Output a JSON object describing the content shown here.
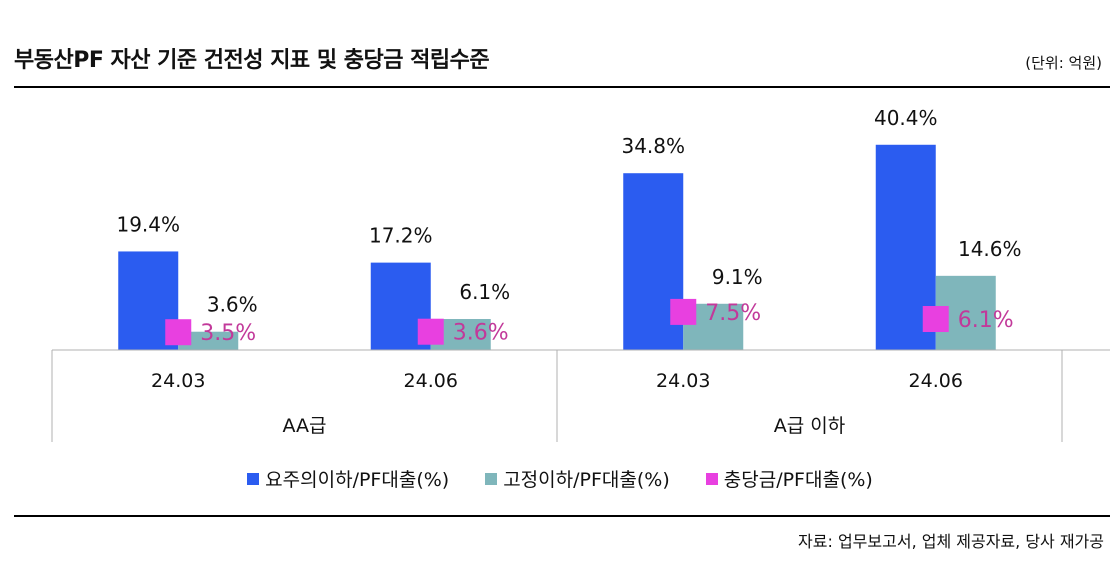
{
  "header": {
    "title": "부동산PF 자산 기준 건전성 지표 및 충당금 적립수준",
    "unit": "(단위: 억원)"
  },
  "footer": {
    "source": "자료: 업무보고서, 업체 제공자료, 당사 재가공"
  },
  "colors": {
    "series1": "#2b5cf0",
    "series2": "#7fb6bb",
    "series3": "#e840e0",
    "series3_label": "#c2399a"
  },
  "chart_data": {
    "type": "bar",
    "groups": [
      {
        "name": "AA급",
        "categories": [
          "24.03",
          "24.06"
        ]
      },
      {
        "name": "A급 이하",
        "categories": [
          "24.03",
          "24.06"
        ]
      }
    ],
    "categories": [
      "24.03",
      "24.06",
      "24.03",
      "24.06"
    ],
    "series": [
      {
        "name": "요주의이하/PF대출(%)",
        "type": "bar",
        "values": [
          19.4,
          17.2,
          34.8,
          40.4
        ],
        "labels": [
          "19.4%",
          "17.2%",
          "34.8%",
          "40.4%"
        ]
      },
      {
        "name": "고정이하/PF대출(%)",
        "type": "bar",
        "values": [
          3.6,
          6.1,
          9.1,
          14.6
        ],
        "labels": [
          "3.6%",
          "6.1%",
          "9.1%",
          "14.6%"
        ]
      },
      {
        "name": "충당금/PF대출(%)",
        "type": "marker",
        "values": [
          3.5,
          3.6,
          7.5,
          6.1
        ],
        "labels": [
          "3.5%",
          "3.6%",
          "7.5%",
          "6.1%"
        ]
      }
    ],
    "ylim": [
      0,
      45
    ],
    "grid": false,
    "legend": "bottom"
  }
}
